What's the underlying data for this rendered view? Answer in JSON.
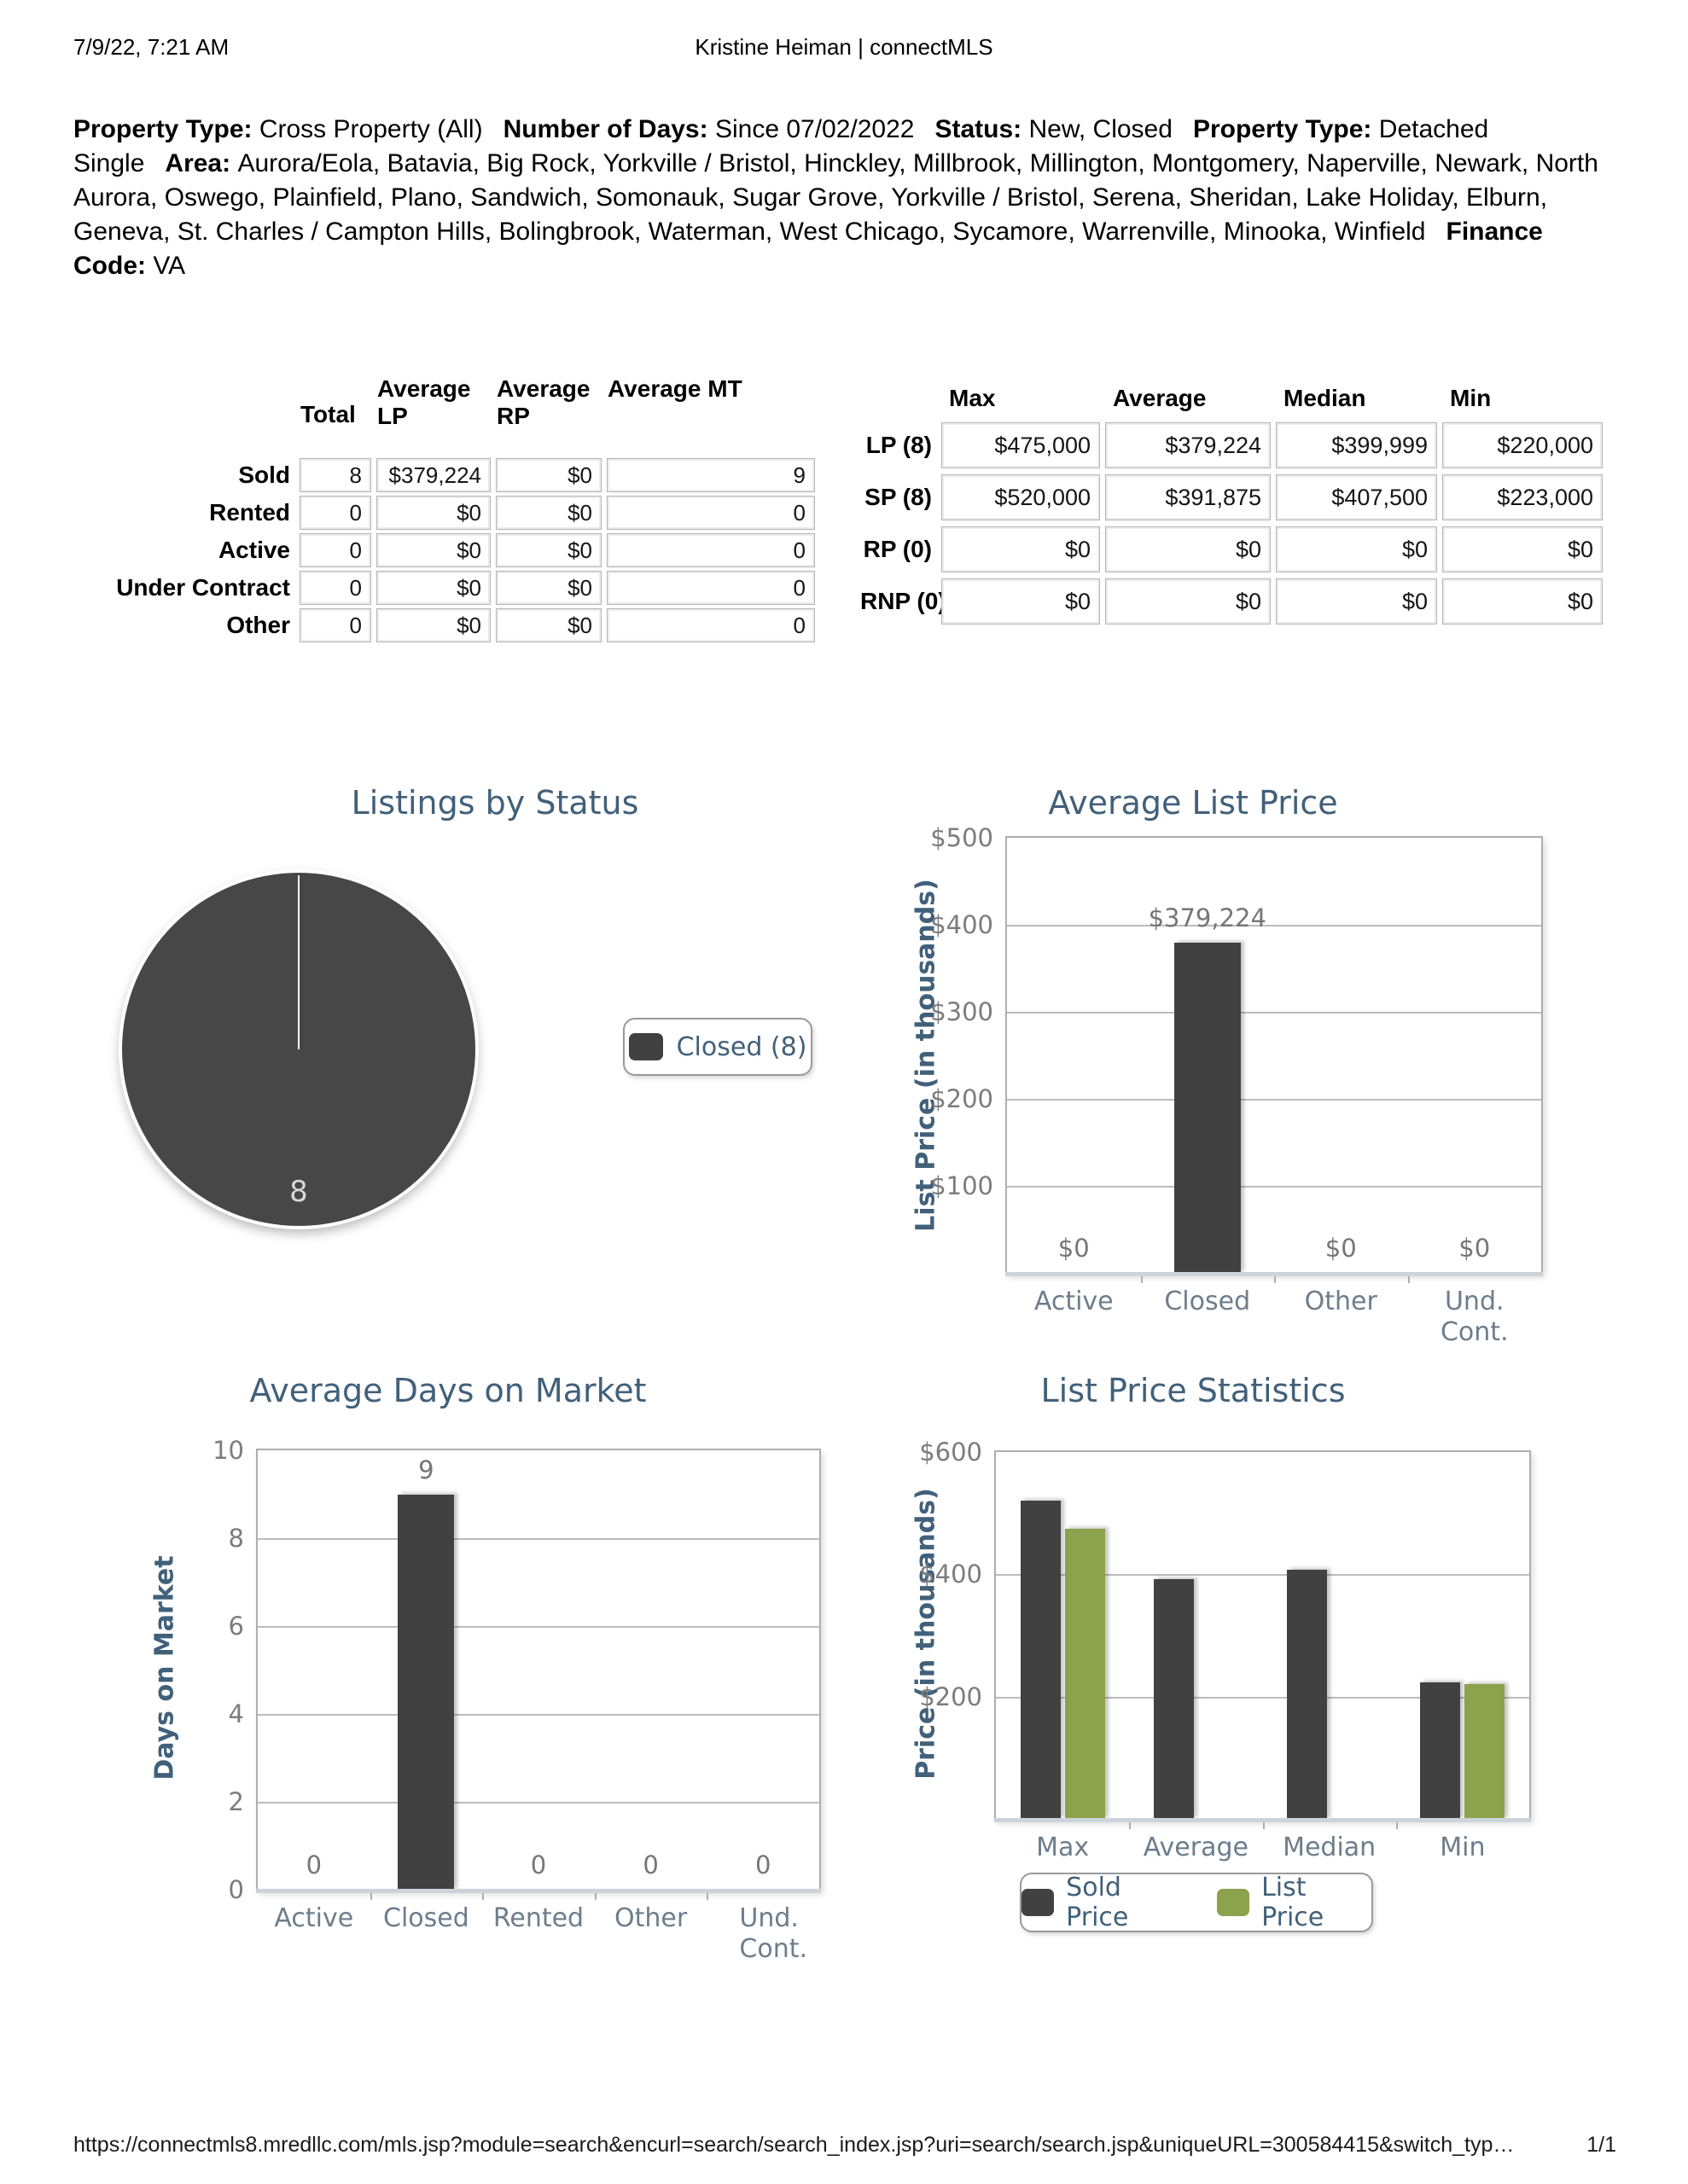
{
  "header": {
    "datetime": "7/9/22, 7:21 AM",
    "title": "Kristine Heiman | connectMLS"
  },
  "filters": [
    {
      "label": "Property Type:",
      "value": "Cross Property (All)"
    },
    {
      "label": "Number of Days:",
      "value": "Since 07/02/2022"
    },
    {
      "label": "Status:",
      "value": "New, Closed"
    },
    {
      "label": "Property Type:",
      "value": "Detached Single"
    },
    {
      "label": "Area:",
      "value": "Aurora/Eola, Batavia, Big Rock, Yorkville / Bristol, Hinckley, Millbrook, Millington, Montgomery, Naperville, Newark, North Aurora, Oswego, Plainfield, Plano, Sandwich, Somonauk, Sugar Grove, Yorkville / Bristol, Serena, Sheridan, Lake Holiday, Elburn, Geneva, St. Charles / Campton Hills, Bolingbrook, Waterman, West Chicago, Sycamore, Warrenville, Minooka, Winfield"
    },
    {
      "label": "Finance Code:",
      "value": "VA"
    }
  ],
  "status_table": {
    "headers": [
      "Total",
      "Average LP",
      "Average RP",
      "Average MT"
    ],
    "rows": [
      {
        "label": "Sold",
        "total": "8",
        "avg_lp": "$379,224",
        "avg_rp": "$0",
        "avg_mt": "9"
      },
      {
        "label": "Rented",
        "total": "0",
        "avg_lp": "$0",
        "avg_rp": "$0",
        "avg_mt": "0"
      },
      {
        "label": "Active",
        "total": "0",
        "avg_lp": "$0",
        "avg_rp": "$0",
        "avg_mt": "0"
      },
      {
        "label": "Under Contract",
        "total": "0",
        "avg_lp": "$0",
        "avg_rp": "$0",
        "avg_mt": "0"
      },
      {
        "label": "Other",
        "total": "0",
        "avg_lp": "$0",
        "avg_rp": "$0",
        "avg_mt": "0"
      }
    ]
  },
  "price_table": {
    "headers": [
      "Max",
      "Average",
      "Median",
      "Min"
    ],
    "rows": [
      {
        "label": "LP (8)",
        "max": "$475,000",
        "avg": "$379,224",
        "median": "$399,999",
        "min": "$220,000"
      },
      {
        "label": "SP (8)",
        "max": "$520,000",
        "avg": "$391,875",
        "median": "$407,500",
        "min": "$223,000"
      },
      {
        "label": "RP (0)",
        "max": "$0",
        "avg": "$0",
        "median": "$0",
        "min": "$0"
      },
      {
        "label": "RNP (0)",
        "max": "$0",
        "avg": "$0",
        "median": "$0",
        "min": "$0"
      }
    ]
  },
  "chart_data": [
    {
      "type": "pie",
      "title": "Listings by Status",
      "slices": [
        {
          "label": "Closed",
          "value": 8,
          "value_label": "8",
          "color": "#474747"
        }
      ],
      "legend": [
        {
          "label": "Closed (8)",
          "color": "#474747"
        }
      ],
      "legend_position": "right"
    },
    {
      "type": "bar",
      "title": "Average List Price",
      "ylabel": "List Price (in thousands)",
      "categories": [
        "Active",
        "Closed",
        "Other",
        "Und. Cont."
      ],
      "values": [
        0,
        379224,
        0,
        0
      ],
      "value_labels": [
        "$0",
        "$379,224",
        "$0",
        "$0"
      ],
      "yticks": [
        "$500",
        "$400",
        "$300",
        "$200",
        "$100"
      ],
      "ylim": [
        0,
        500000
      ],
      "grid": true,
      "bar_color": "#414141"
    },
    {
      "type": "bar",
      "title": "Average Days on Market",
      "ylabel": "Days on Market",
      "categories": [
        "Active",
        "Closed",
        "Rented",
        "Other",
        "Und. Cont."
      ],
      "values": [
        0,
        9,
        0,
        0,
        0
      ],
      "value_labels": [
        "0",
        "9",
        "0",
        "0",
        "0"
      ],
      "yticks": [
        "10",
        "8",
        "6",
        "4",
        "2",
        "0"
      ],
      "ylim": [
        0,
        10
      ],
      "grid": true,
      "bar_color": "#414141"
    },
    {
      "type": "grouped_bar",
      "title": "List Price Statistics",
      "ylabel": "Price (in thousands)",
      "categories": [
        "Max",
        "Average",
        "Median",
        "Min"
      ],
      "series": [
        {
          "name": "Sold Price",
          "color": "#414141",
          "values": [
            520000,
            391875,
            407500,
            223000
          ]
        },
        {
          "name": "List Price",
          "color": "#8ca24d",
          "values": [
            475000,
            null,
            null,
            220000
          ]
        }
      ],
      "yticks": [
        "$600",
        "$400",
        "$200"
      ],
      "ylim": [
        0,
        600000
      ],
      "grid": true,
      "legend_position": "bottom"
    }
  ],
  "footer": {
    "url": "https://connectmls8.mredllc.com/mls.jsp?module=search&encurl=search/search_index.jsp?uri=search/search.jsp&uniqueURL=300584415&switch_typ…",
    "page": "1/1"
  },
  "colors": {
    "title_blue": "#41607a",
    "bar_dark": "#414141",
    "bar_green": "#8ca24d",
    "pie_dark": "#474747"
  }
}
